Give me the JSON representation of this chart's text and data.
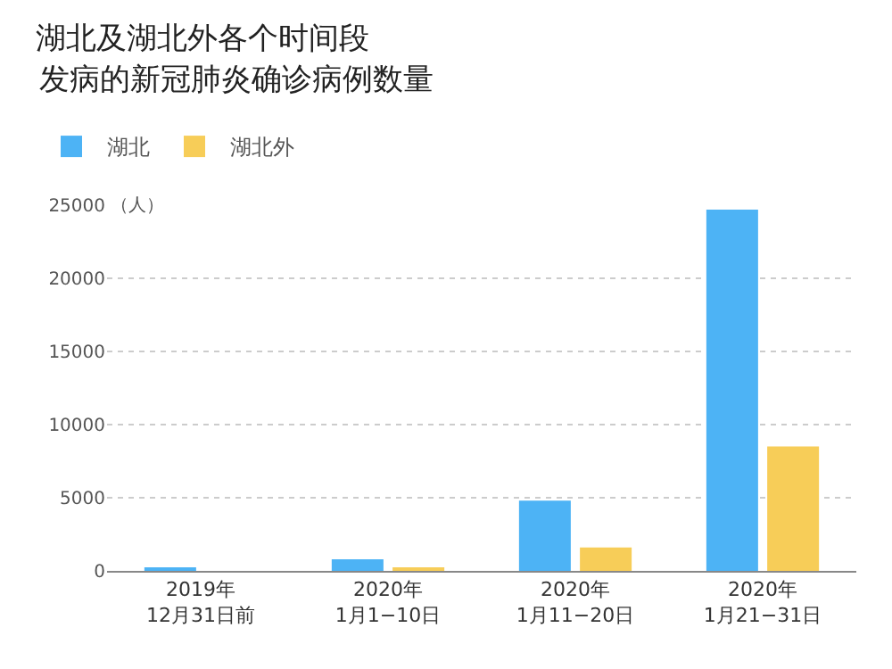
{
  "chart_data": {
    "type": "bar",
    "title": "湖北及湖北外各个时间段",
    "subtitle": "发病的新冠肺炎确诊病例数量",
    "ylabel": "（人）",
    "categories": [
      "2019年\n12月31日前",
      "2020年\n1月1−10日",
      "2020年\n1月11−20日",
      "2020年\n1月21−31日"
    ],
    "series": [
      {
        "name": "湖北",
        "color": "#4db3f5",
        "values": [
          200,
          800,
          4800,
          24700
        ]
      },
      {
        "name": "湖北外",
        "color": "#f7cd58",
        "values": [
          0,
          200,
          1600,
          8500
        ]
      }
    ],
    "ylim": [
      0,
      25000
    ],
    "yticks": [
      0,
      5000,
      10000,
      15000,
      20000,
      25000
    ],
    "grid": "y",
    "legend": "top left"
  }
}
